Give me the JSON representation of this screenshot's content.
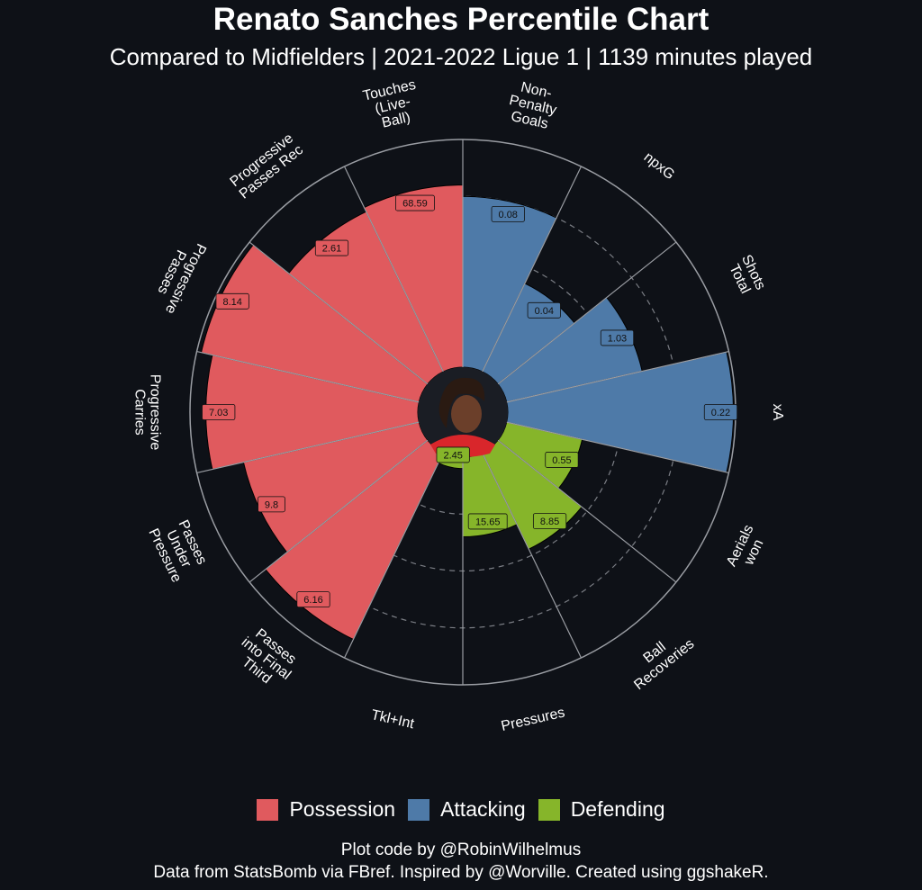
{
  "title": "Renato Sanches Percentile Chart",
  "subtitle": "Compared to Midfielders | 2021-2022 Ligue 1 | 1139 minutes played",
  "legend": [
    {
      "label": "Possession",
      "color": "#e05a5e"
    },
    {
      "label": "Attacking",
      "color": "#4e7aa8"
    },
    {
      "label": "Defending",
      "color": "#86b52a"
    }
  ],
  "caption": {
    "line1": "Plot code by @RobinWilhelmus",
    "line2": "Data from StatsBomb via FBref. Inspired by @Worville. Created using ggshakeR."
  },
  "chart_data": {
    "type": "polar-bar",
    "value_scale": "percentile",
    "rlim": [
      0,
      100
    ],
    "grid": true,
    "legend_position": "bottom",
    "center_image": "player-photo",
    "categories": [
      {
        "label": "Non-\nPenalty\nGoals",
        "group": "Attacking",
        "percentile": 75,
        "value": "0.08"
      },
      {
        "label": "npxG",
        "group": "Attacking",
        "percentile": 43,
        "value": "0.04"
      },
      {
        "label": "Shots\nTotal",
        "group": "Attacking",
        "percentile": 61,
        "value": "1.03"
      },
      {
        "label": "xA",
        "group": "Attacking",
        "percentile": 99,
        "value": "0.22"
      },
      {
        "label": "Aerials\nwon",
        "group": "Defending",
        "percentile": 34,
        "value": "0.55"
      },
      {
        "label": "Ball\nRecoveries",
        "group": "Defending",
        "percentile": 47,
        "value": "8.85"
      },
      {
        "label": "Pressures",
        "group": "Defending",
        "percentile": 35,
        "value": "15.65"
      },
      {
        "label": "Tkl+Int",
        "group": "Defending",
        "percentile": 5,
        "value": "2.45"
      },
      {
        "label": "Passes\ninto Final\nThird",
        "group": "Possession",
        "percentile": 91,
        "value": "6.16"
      },
      {
        "label": "Passes\nUnder\nPressure",
        "group": "Possession",
        "percentile": 79,
        "value": "9.8"
      },
      {
        "label": "Progressive\nCarries",
        "group": "Possession",
        "percentile": 93,
        "value": "7.03"
      },
      {
        "label": "Progressive\nPasses",
        "group": "Possession",
        "percentile": 98,
        "value": "8.14"
      },
      {
        "label": "Progressive\nPasses Rec",
        "group": "Possession",
        "percentile": 78,
        "value": "2.61"
      },
      {
        "label": "Touches\n(Live-\nBall)",
        "group": "Possession",
        "percentile": 80,
        "value": "68.59"
      }
    ]
  }
}
